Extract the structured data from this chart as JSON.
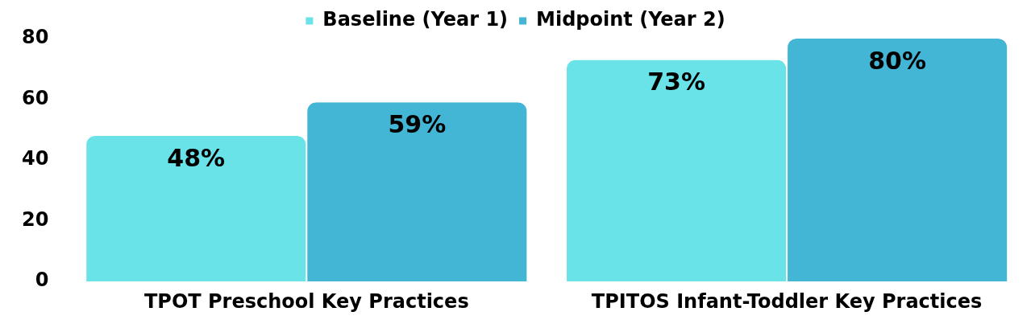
{
  "chart_data": {
    "type": "bar",
    "categories": [
      "TPOT Preschool Key Practices",
      "TPITOS Infant-Toddler Key Practices"
    ],
    "series": [
      {
        "name": "Baseline (Year 1)",
        "color": "#69e3e8",
        "values": [
          48,
          73
        ],
        "value_labels": [
          "48%",
          "73%"
        ]
      },
      {
        "name": "Midpoint (Year 2)",
        "color": "#42b6d4",
        "values": [
          59,
          80
        ],
        "value_labels": [
          "59%",
          "80%"
        ]
      }
    ],
    "ylim": [
      0,
      80
    ],
    "yticks": [
      0,
      20,
      40,
      60,
      80
    ],
    "grid": false,
    "legend": "top"
  }
}
